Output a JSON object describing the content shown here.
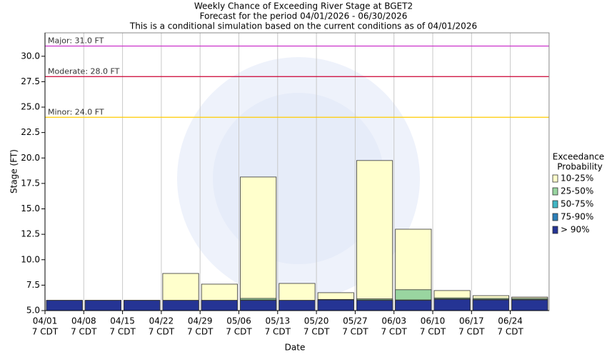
{
  "chart_data": {
    "type": "bar",
    "title": [
      "Weekly Chance of Exceeding River Stage at BGET2",
      "Forecast for the period 04/01/2026 - 06/30/2026",
      "This is a conditional simulation based on the current conditions as of 04/01/2026"
    ],
    "y_label": "Stage (FT)",
    "x_label": "Date",
    "categories": [
      "04/01",
      "04/08",
      "04/15",
      "04/22",
      "04/29",
      "05/06",
      "05/13",
      "05/20",
      "05/27",
      "06/03",
      "06/10",
      "06/17",
      "06/24"
    ],
    "tick_time": "7 CDT",
    "legend_title": [
      "Exceedance",
      "Probability"
    ],
    "series": [
      {
        "name": "10-25%",
        "color": "#ffffcc",
        "values": [
          6.0,
          6.0,
          6.0,
          8.65,
          7.6,
          18.13,
          7.67,
          6.76,
          19.75,
          13.0,
          6.97,
          6.47,
          6.33
        ]
      },
      {
        "name": "25-50%",
        "color": "#99d5a0",
        "values": [
          6.0,
          6.0,
          6.0,
          6.0,
          6.0,
          6.2,
          6.0,
          6.1,
          6.15,
          7.05,
          6.25,
          6.2,
          6.2
        ]
      },
      {
        "name": "50-75%",
        "color": "#41b6c4",
        "values": [
          6.0,
          6.0,
          6.0,
          6.0,
          6.0,
          6.05,
          6.0,
          6.05,
          6.05,
          6.05,
          6.15,
          6.1,
          6.1
        ]
      },
      {
        "name": "75-90%",
        "color": "#2c7fb8",
        "values": [
          6.0,
          6.0,
          6.0,
          6.0,
          6.0,
          6.0,
          6.0,
          6.05,
          6.0,
          6.0,
          6.1,
          6.05,
          6.05
        ]
      },
      {
        "name": "> 90%",
        "color": "#253494",
        "values": [
          6.0,
          6.0,
          6.0,
          6.0,
          6.0,
          6.0,
          6.0,
          6.05,
          6.0,
          6.0,
          6.1,
          6.05,
          6.05
        ]
      }
    ],
    "thresholds": [
      {
        "label": "Major: 31.0 FT",
        "value": 31.0,
        "color": "#cc33cc"
      },
      {
        "label": "Moderate: 28.0 FT",
        "value": 28.0,
        "color": "#cc0033"
      },
      {
        "label": "Minor: 24.0 FT",
        "value": 24.0,
        "color": "#ffcc00"
      }
    ],
    "ylim": [
      5.0,
      32.3
    ],
    "yticks": [
      {
        "value": 5,
        "label": "5.0"
      },
      {
        "value": 7.5,
        "label": "7.5"
      },
      {
        "value": 10,
        "label": "10.0"
      },
      {
        "value": 12.5,
        "label": "12.5"
      },
      {
        "value": 15,
        "label": "15.0"
      },
      {
        "value": 17.5,
        "label": "17.5"
      },
      {
        "value": 20,
        "label": "20.0"
      },
      {
        "value": 22.5,
        "label": "22.5"
      },
      {
        "value": 25,
        "label": "25.0"
      },
      {
        "value": 27.5,
        "label": "27.5"
      },
      {
        "value": 30,
        "label": "30.0"
      }
    ],
    "grid": true
  }
}
